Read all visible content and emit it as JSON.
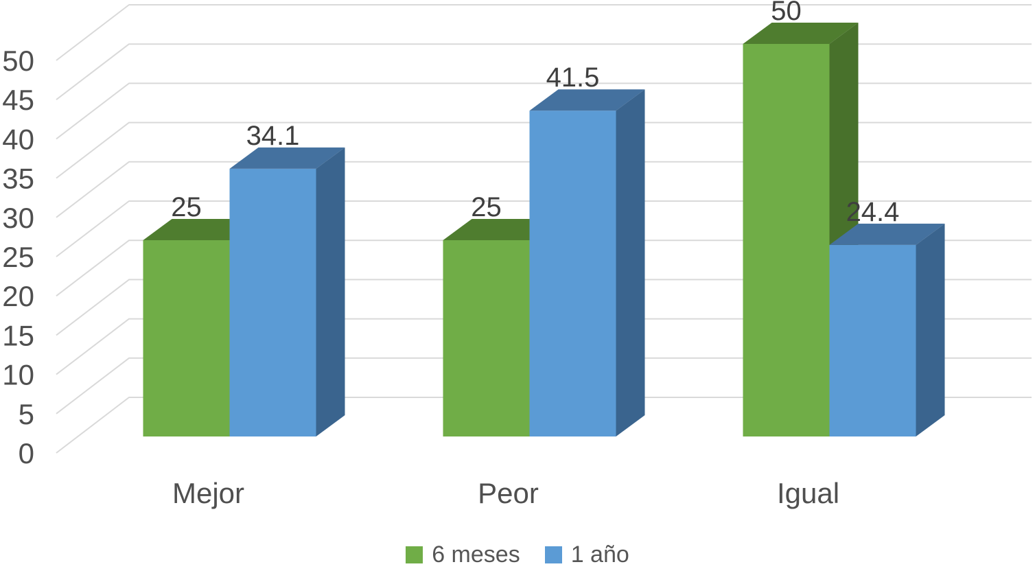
{
  "chart_data": {
    "type": "bar",
    "variant": "3d-clustered-column",
    "categories": [
      "Mejor",
      "Peor",
      "Igual"
    ],
    "series": [
      {
        "name": "6 meses",
        "color": "#70AD47",
        "shades": {
          "top": "#4F7D2F",
          "side": "#48712B"
        },
        "values": [
          25,
          25,
          50
        ]
      },
      {
        "name": "1 año",
        "color": "#5B9BD5",
        "shades": {
          "top": "#44719F",
          "side": "#3A648E"
        },
        "values": [
          34.1,
          41.5,
          24.4
        ]
      }
    ],
    "data_labels_shown": true,
    "yaxis": {
      "min": 0,
      "max": 50,
      "step": 5,
      "tick_labels": [
        "0",
        "5",
        "10",
        "15",
        "20",
        "25",
        "30",
        "35",
        "40",
        "45",
        "50"
      ]
    },
    "grid": true,
    "legend": {
      "position": "bottom"
    },
    "colors": {
      "grid": "#D9D9D9",
      "axis_text": "#4F4F4F",
      "category_text": "#4F4F4F",
      "data_label_text": "#3F3F3F",
      "legend_text": "#555555",
      "background": "#FFFFFF"
    }
  }
}
